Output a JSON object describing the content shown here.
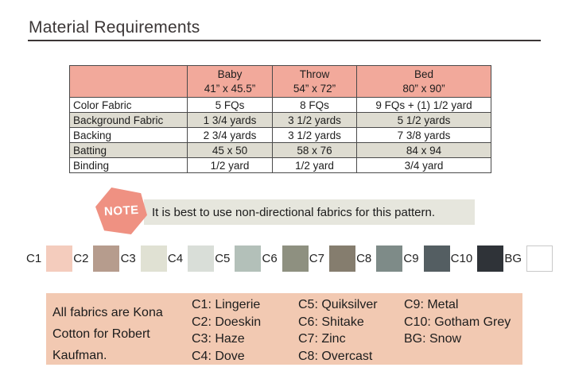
{
  "page": {
    "title": "Material Requirements"
  },
  "table": {
    "columns": [
      {
        "name": "Baby",
        "size": "41” x 45.5”"
      },
      {
        "name": "Throw",
        "size": "54” x 72”"
      },
      {
        "name": "Bed",
        "size": "80” x 90”"
      }
    ],
    "rows": [
      {
        "label": "Color Fabric",
        "baby": "5 FQs",
        "throw": "8 FQs",
        "bed": "9 FQs + (1) 1/2 yard"
      },
      {
        "label": "Background Fabric",
        "baby": "1 3/4 yards",
        "throw": "3 1/2 yards",
        "bed": "5 1/2 yards"
      },
      {
        "label": "Backing",
        "baby": "2 3/4 yards",
        "throw": "3 1/2 yards",
        "bed": "7 3/8 yards"
      },
      {
        "label": "Batting",
        "baby": "45 x 50",
        "throw": "58 x 76",
        "bed": "84 x 94"
      },
      {
        "label": "Binding",
        "baby": "1/2 yard",
        "throw": "1/2 yard",
        "bed": "3/4 yard"
      }
    ]
  },
  "note": {
    "badge": "NOTE",
    "text": "It is best to use non-directional fabrics for this pattern."
  },
  "swatches": [
    {
      "label": "C1",
      "color": "#f4ccbd"
    },
    {
      "label": "C2",
      "color": "#b69c8d"
    },
    {
      "label": "C3",
      "color": "#e0e1d3"
    },
    {
      "label": "C4",
      "color": "#d9ded8"
    },
    {
      "label": "C5",
      "color": "#b3c0b9"
    },
    {
      "label": "C6",
      "color": "#8e9080"
    },
    {
      "label": "C7",
      "color": "#857d6e"
    },
    {
      "label": "C8",
      "color": "#7e8b88"
    },
    {
      "label": "C9",
      "color": "#545e62"
    },
    {
      "label": "C10",
      "color": "#2f3338"
    },
    {
      "label": "BG",
      "color": "#ffffff"
    }
  ],
  "panel": {
    "intro": "All fabrics are Kona Cotton for Robert Kaufman.",
    "columns": [
      {
        "items": [
          "C1: Lingerie",
          "C2: Doeskin",
          "C3: Haze",
          "C4: Dove"
        ]
      },
      {
        "items": [
          "C5: Quiksilver",
          "C6: Shitake",
          "C7: Zinc",
          "C8: Overcast"
        ]
      },
      {
        "items": [
          "C9: Metal",
          "C10: Gotham Grey",
          "BG: Snow"
        ]
      }
    ]
  },
  "colors": {
    "header_bg": "#f2a99b",
    "alt_row_bg": "#dedcd1",
    "note_badge": "#ef9182",
    "note_bar_bg": "#e6e6dd",
    "panel_bg": "#f2c9b2",
    "rule": "#3b3636"
  }
}
